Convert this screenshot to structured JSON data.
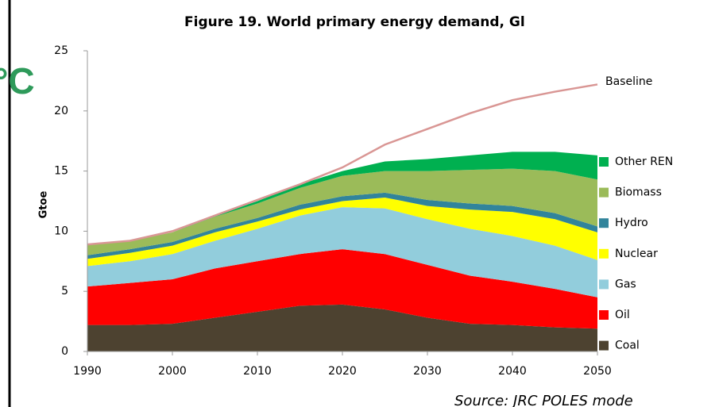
{
  "chart_data": {
    "type": "stacked-area",
    "title": "Figure 19. World primary energy demand, Gl",
    "side_text": "°C",
    "source": "Source: JRC POLES mode",
    "ylabel": "Gtoe",
    "x": [
      1990,
      1995,
      2000,
      2005,
      2010,
      2015,
      2020,
      2025,
      2030,
      2035,
      2040,
      2045,
      2050
    ],
    "xlim": [
      1990,
      2050
    ],
    "xticks": [
      1990,
      2000,
      2010,
      2020,
      2030,
      2040,
      2050
    ],
    "ylim": [
      0,
      25
    ],
    "yticks": [
      0,
      5,
      10,
      15,
      20,
      25
    ],
    "series": [
      {
        "name": "Coal",
        "color": "#4d4230",
        "values": [
          2.2,
          2.2,
          2.3,
          2.8,
          3.3,
          3.8,
          3.9,
          3.5,
          2.8,
          2.3,
          2.2,
          2.0,
          1.9
        ]
      },
      {
        "name": "Oil",
        "color": "#ff0000",
        "values": [
          3.2,
          3.5,
          3.7,
          4.1,
          4.2,
          4.3,
          4.6,
          4.6,
          4.4,
          4.0,
          3.6,
          3.2,
          2.6
        ]
      },
      {
        "name": "Gas",
        "color": "#92cddc",
        "values": [
          1.7,
          1.8,
          2.1,
          2.3,
          2.7,
          3.2,
          3.5,
          3.8,
          3.8,
          3.9,
          3.8,
          3.6,
          3.1
        ]
      },
      {
        "name": "Nuclear",
        "color": "#ffff00",
        "values": [
          0.6,
          0.7,
          0.7,
          0.7,
          0.6,
          0.5,
          0.5,
          0.9,
          1.1,
          1.6,
          2.0,
          2.2,
          2.3
        ]
      },
      {
        "name": "Hydro",
        "color": "#31849b",
        "values": [
          0.3,
          0.3,
          0.3,
          0.3,
          0.3,
          0.4,
          0.4,
          0.4,
          0.5,
          0.5,
          0.5,
          0.5,
          0.5
        ]
      },
      {
        "name": "Biomass",
        "color": "#9bbb59",
        "values": [
          0.9,
          0.7,
          0.8,
          1.0,
          1.2,
          1.4,
          1.7,
          1.8,
          2.4,
          2.8,
          3.1,
          3.5,
          3.9
        ]
      },
      {
        "name": "Other REN",
        "color": "#00b050",
        "values": [
          0,
          0,
          0,
          0.1,
          0.2,
          0.3,
          0.4,
          0.8,
          1.0,
          1.2,
          1.4,
          1.6,
          2.0
        ]
      }
    ],
    "line": {
      "name": "Baseline",
      "color": "#d99694",
      "values": [
        8.9,
        9.2,
        10.0,
        11.3,
        12.6,
        13.9,
        15.3,
        17.2,
        18.5,
        19.8,
        20.9,
        21.6,
        22.2
      ]
    }
  }
}
